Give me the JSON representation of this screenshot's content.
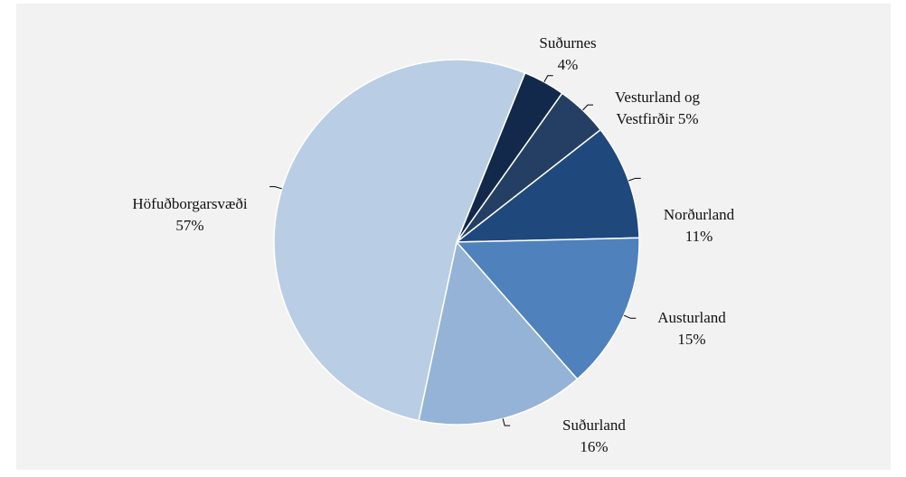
{
  "chart_data": {
    "type": "pie",
    "categories": [
      "Suðurnes",
      "Vesturland og Vestfirðir",
      "Norðurland",
      "Austurland",
      "Suðurland",
      "Höfuðborgarsvæði"
    ],
    "values": [
      4,
      5,
      11,
      15,
      16,
      57
    ],
    "value_labels": [
      "4%",
      "5%",
      "11%",
      "15%",
      "16%",
      "57%"
    ],
    "colors": [
      "#13294b",
      "#243f63",
      "#1f497d",
      "#4f81bd",
      "#95b3d7",
      "#b9cde5"
    ]
  }
}
